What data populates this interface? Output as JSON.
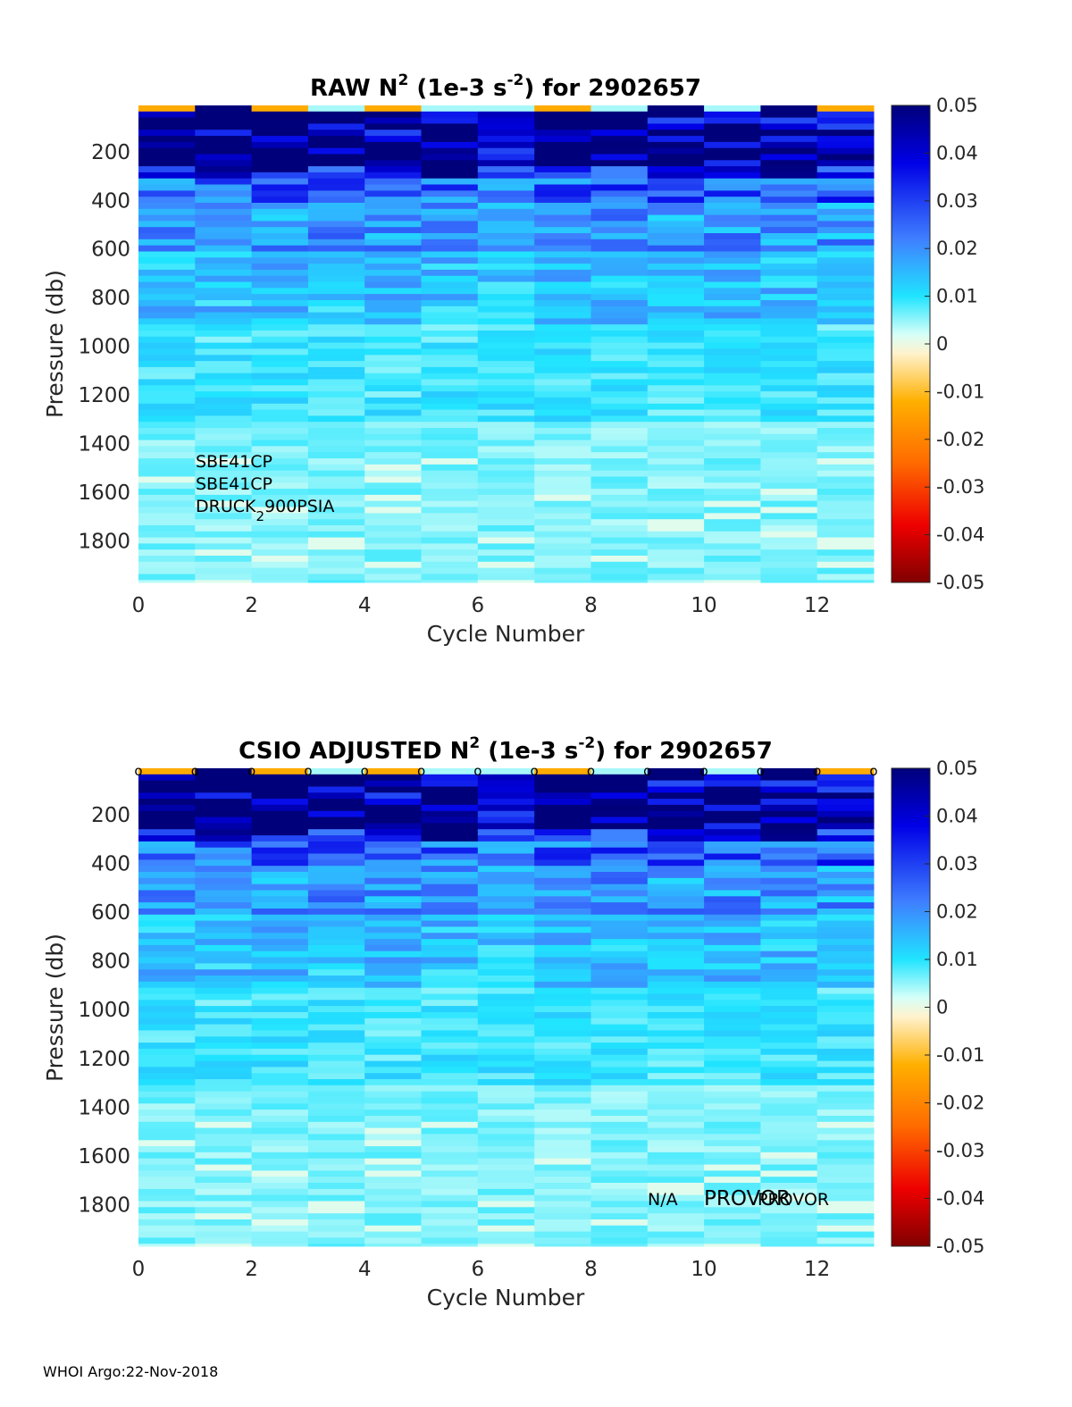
{
  "chart_data": [
    {
      "type": "heatmap",
      "title_prefix": "RAW N",
      "title_sup1": "2",
      "title_mid": " (1e-3 s",
      "title_sup2": "-2",
      "title_suffix": ") for 2902657",
      "xlabel": "Cycle Number",
      "ylabel": "Pressure (db)",
      "xlim": [
        0,
        13
      ],
      "ylim": [
        1970,
        10
      ],
      "xticks": [
        "0",
        "2",
        "4",
        "6",
        "8",
        "10",
        "12"
      ],
      "yticks": [
        "200",
        "400",
        "600",
        "800",
        "1000",
        "1200",
        "1400",
        "1600",
        "1800"
      ],
      "clim": [
        -0.05,
        0.05
      ],
      "colorbar_ticks": [
        "0.05",
        "0.04",
        "0.03",
        "0.02",
        "0.01",
        "0",
        "-0.01",
        "-0.02",
        "-0.03",
        "-0.04",
        "-0.05"
      ],
      "annotations": {
        "line1": "SBE41CP",
        "line2": "SBE41CP",
        "line3_main": "DRUCK",
        "line3_sub": "2",
        "line3_end": "900PSIA"
      }
    },
    {
      "type": "heatmap",
      "title_prefix": "CSIO  ADJUSTED N",
      "title_sup1": "2",
      "title_mid": " (1e-3 s",
      "title_sup2": "-2",
      "title_suffix": ") for 2902657",
      "xlabel": "Cycle Number",
      "ylabel": "Pressure (db)",
      "xlim": [
        0,
        13
      ],
      "ylim": [
        1970,
        10
      ],
      "xticks": [
        "0",
        "2",
        "4",
        "6",
        "8",
        "10",
        "12"
      ],
      "yticks": [
        "200",
        "400",
        "600",
        "800",
        "1000",
        "1200",
        "1400",
        "1600",
        "1800"
      ],
      "clim": [
        -0.05,
        0.05
      ],
      "colorbar_ticks": [
        "0.05",
        "0.04",
        "0.03",
        "0.02",
        "0.01",
        "0",
        "-0.01",
        "-0.02",
        "-0.03",
        "-0.04",
        "-0.05"
      ],
      "qc_marker": "o",
      "qc_cycles": [
        0,
        1,
        2,
        3,
        4,
        5,
        6,
        7,
        8,
        9,
        10,
        11,
        12,
        13
      ],
      "annotations": {
        "na": "N/A",
        "provor1": "PROVOR",
        "provor2": "PROVOR"
      }
    }
  ],
  "footer": "WHOI Argo:22-Nov-2018"
}
